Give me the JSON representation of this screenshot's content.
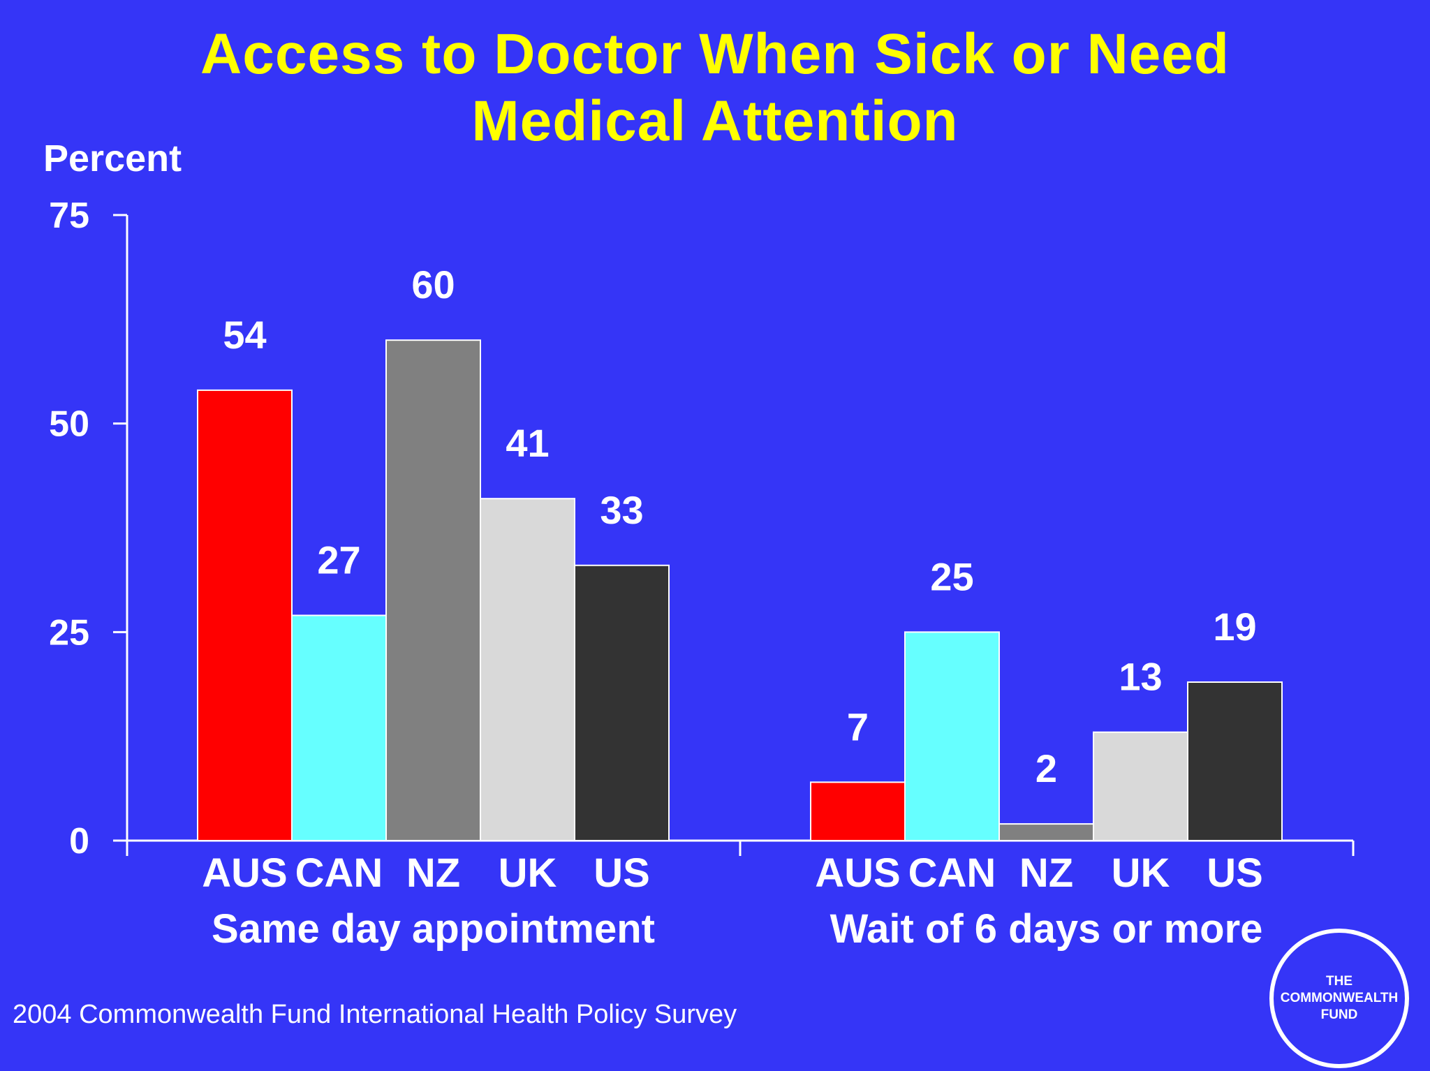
{
  "title": {
    "line1": "Access to Doctor When Sick or Need",
    "line2": "Medical Attention"
  },
  "footer": "2004 Commonwealth Fund International Health Policy Survey",
  "logo": {
    "line1": "THE",
    "line2": "COMMONWEALTH",
    "line3": "FUND"
  },
  "colors": {
    "background": "#3535f7",
    "title": "#ffff00",
    "text": "#ffffff",
    "AUS": "#ff0000",
    "CAN": "#66ffff",
    "NZ": "#808080",
    "UK": "#d9d9d9",
    "US": "#333333"
  },
  "chart_data": {
    "type": "bar",
    "ylabel": "Percent",
    "ylim": [
      0,
      75
    ],
    "yticks": [
      0,
      25,
      50,
      75
    ],
    "grid": false,
    "series_order": [
      "AUS",
      "CAN",
      "NZ",
      "UK",
      "US"
    ],
    "groups": [
      {
        "name": "Same day appointment",
        "labels": [
          "AUS",
          "CAN",
          "NZ",
          "UK",
          "US"
        ],
        "values": [
          54,
          27,
          60,
          41,
          33
        ]
      },
      {
        "name": "Wait of 6 days or more",
        "labels": [
          "AUS",
          "CAN",
          "NZ",
          "UK",
          "US"
        ],
        "values": [
          7,
          25,
          2,
          13,
          19
        ]
      }
    ]
  }
}
